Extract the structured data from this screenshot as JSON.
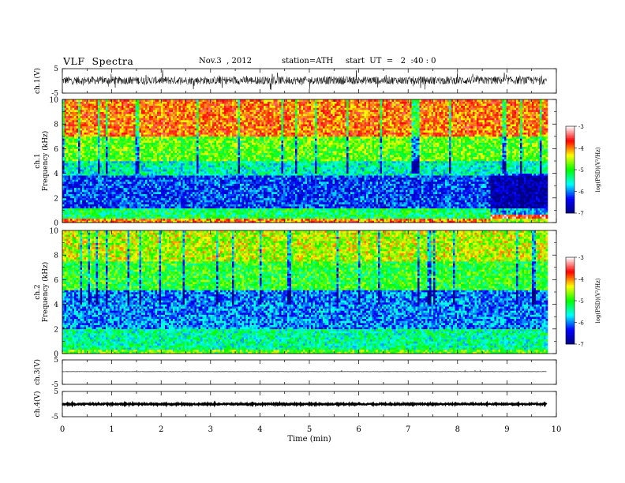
{
  "header": {
    "title": "VLF  Spectra",
    "date": "Nov.3  , 2012",
    "station": "station=ATH",
    "start": "start  UT  =   2  :40 : 0"
  },
  "chart_data": [
    {
      "type": "line",
      "name": "ch1-waveform",
      "ylabel": "ch.1(V)",
      "yticks": [
        "5",
        "-5"
      ],
      "ylim": [
        -5,
        5
      ],
      "xlim": [
        0,
        10
      ],
      "x_end": 9.8,
      "baseline": 0.2,
      "noise_amplitude": 1.6
    },
    {
      "type": "heatmap",
      "name": "ch1-spectrogram",
      "ylabel": "Frequency  (kHz)",
      "channel": "ch.1",
      "yticks": [
        "0",
        "2",
        "4",
        "6",
        "8",
        "10"
      ],
      "ylim": [
        0,
        10
      ],
      "xlim": [
        0,
        10
      ],
      "x_end": 9.8,
      "colorbar": {
        "label": "log(PSD)(V²/Hz)",
        "ticks": [
          "-3",
          "-4",
          "-5",
          "-6",
          "-7"
        ],
        "range": [
          -7,
          -3
        ],
        "colors": [
          "#000080",
          "#0000ff",
          "#00ffff",
          "#00ff00",
          "#ffff00",
          "#ff0000",
          "#ffffff"
        ]
      },
      "bands": [
        {
          "f_low": 0,
          "f_high": 0.3,
          "level": -4.0
        },
        {
          "f_low": 0.3,
          "f_high": 1.2,
          "level": -5.2
        },
        {
          "f_low": 1.2,
          "f_high": 3.8,
          "level": -6.2
        },
        {
          "f_low": 3.8,
          "f_high": 5.0,
          "level": -5.5
        },
        {
          "f_low": 5.0,
          "f_high": 7.0,
          "level": -4.8
        },
        {
          "f_low": 7.0,
          "f_high": 10,
          "level": -3.9
        }
      ],
      "late_segment": {
        "t_start": 8.65,
        "f_low": 0.3,
        "f_high": 0.7,
        "level": -3.5
      }
    },
    {
      "type": "heatmap",
      "name": "ch2-spectrogram",
      "ylabel": "Frequency  (kHz)",
      "channel": "ch.2",
      "yticks": [
        "0",
        "2",
        "4",
        "6",
        "8",
        "10"
      ],
      "ylim": [
        0,
        10
      ],
      "xlim": [
        0,
        10
      ],
      "x_end": 9.8,
      "colorbar": {
        "label": "log(PSD)(V²/Hz)",
        "ticks": [
          "-3",
          "-4",
          "-5",
          "-6",
          "-7"
        ],
        "range": [
          -7,
          -3
        ],
        "colors": [
          "#000080",
          "#0000ff",
          "#00ffff",
          "#00ff00",
          "#ffff00",
          "#ff0000",
          "#ffffff"
        ]
      },
      "bands": [
        {
          "f_low": 0,
          "f_high": 0.3,
          "level": -4.8
        },
        {
          "f_low": 0.3,
          "f_high": 2.0,
          "level": -5.4
        },
        {
          "f_low": 2.0,
          "f_high": 5.2,
          "level": -6.0
        },
        {
          "f_low": 5.2,
          "f_high": 7.5,
          "level": -5.0
        },
        {
          "f_low": 7.5,
          "f_high": 10,
          "level": -4.5
        }
      ]
    },
    {
      "type": "line",
      "name": "ch3-waveform",
      "ylabel": "ch.3(V)",
      "yticks": [
        "5",
        "-5"
      ],
      "ylim": [
        -5,
        5
      ],
      "xlim": [
        0,
        10
      ],
      "x_end": 9.8,
      "baseline": 0.2,
      "noise_amplitude": 0.05
    },
    {
      "type": "line",
      "name": "ch4-waveform",
      "ylabel": "ch.4(V)",
      "yticks": [
        "5",
        "-5"
      ],
      "ylim": [
        -5,
        5
      ],
      "xlim": [
        0,
        10
      ],
      "x_end": 9.8,
      "baseline": 0.0,
      "noise_amplitude": 0.25
    }
  ],
  "xaxis": {
    "label": "Time  (min)",
    "ticks": [
      "0",
      "1",
      "2",
      "3",
      "4",
      "5",
      "6",
      "7",
      "8",
      "9",
      "10"
    ],
    "range": [
      0,
      10
    ]
  }
}
